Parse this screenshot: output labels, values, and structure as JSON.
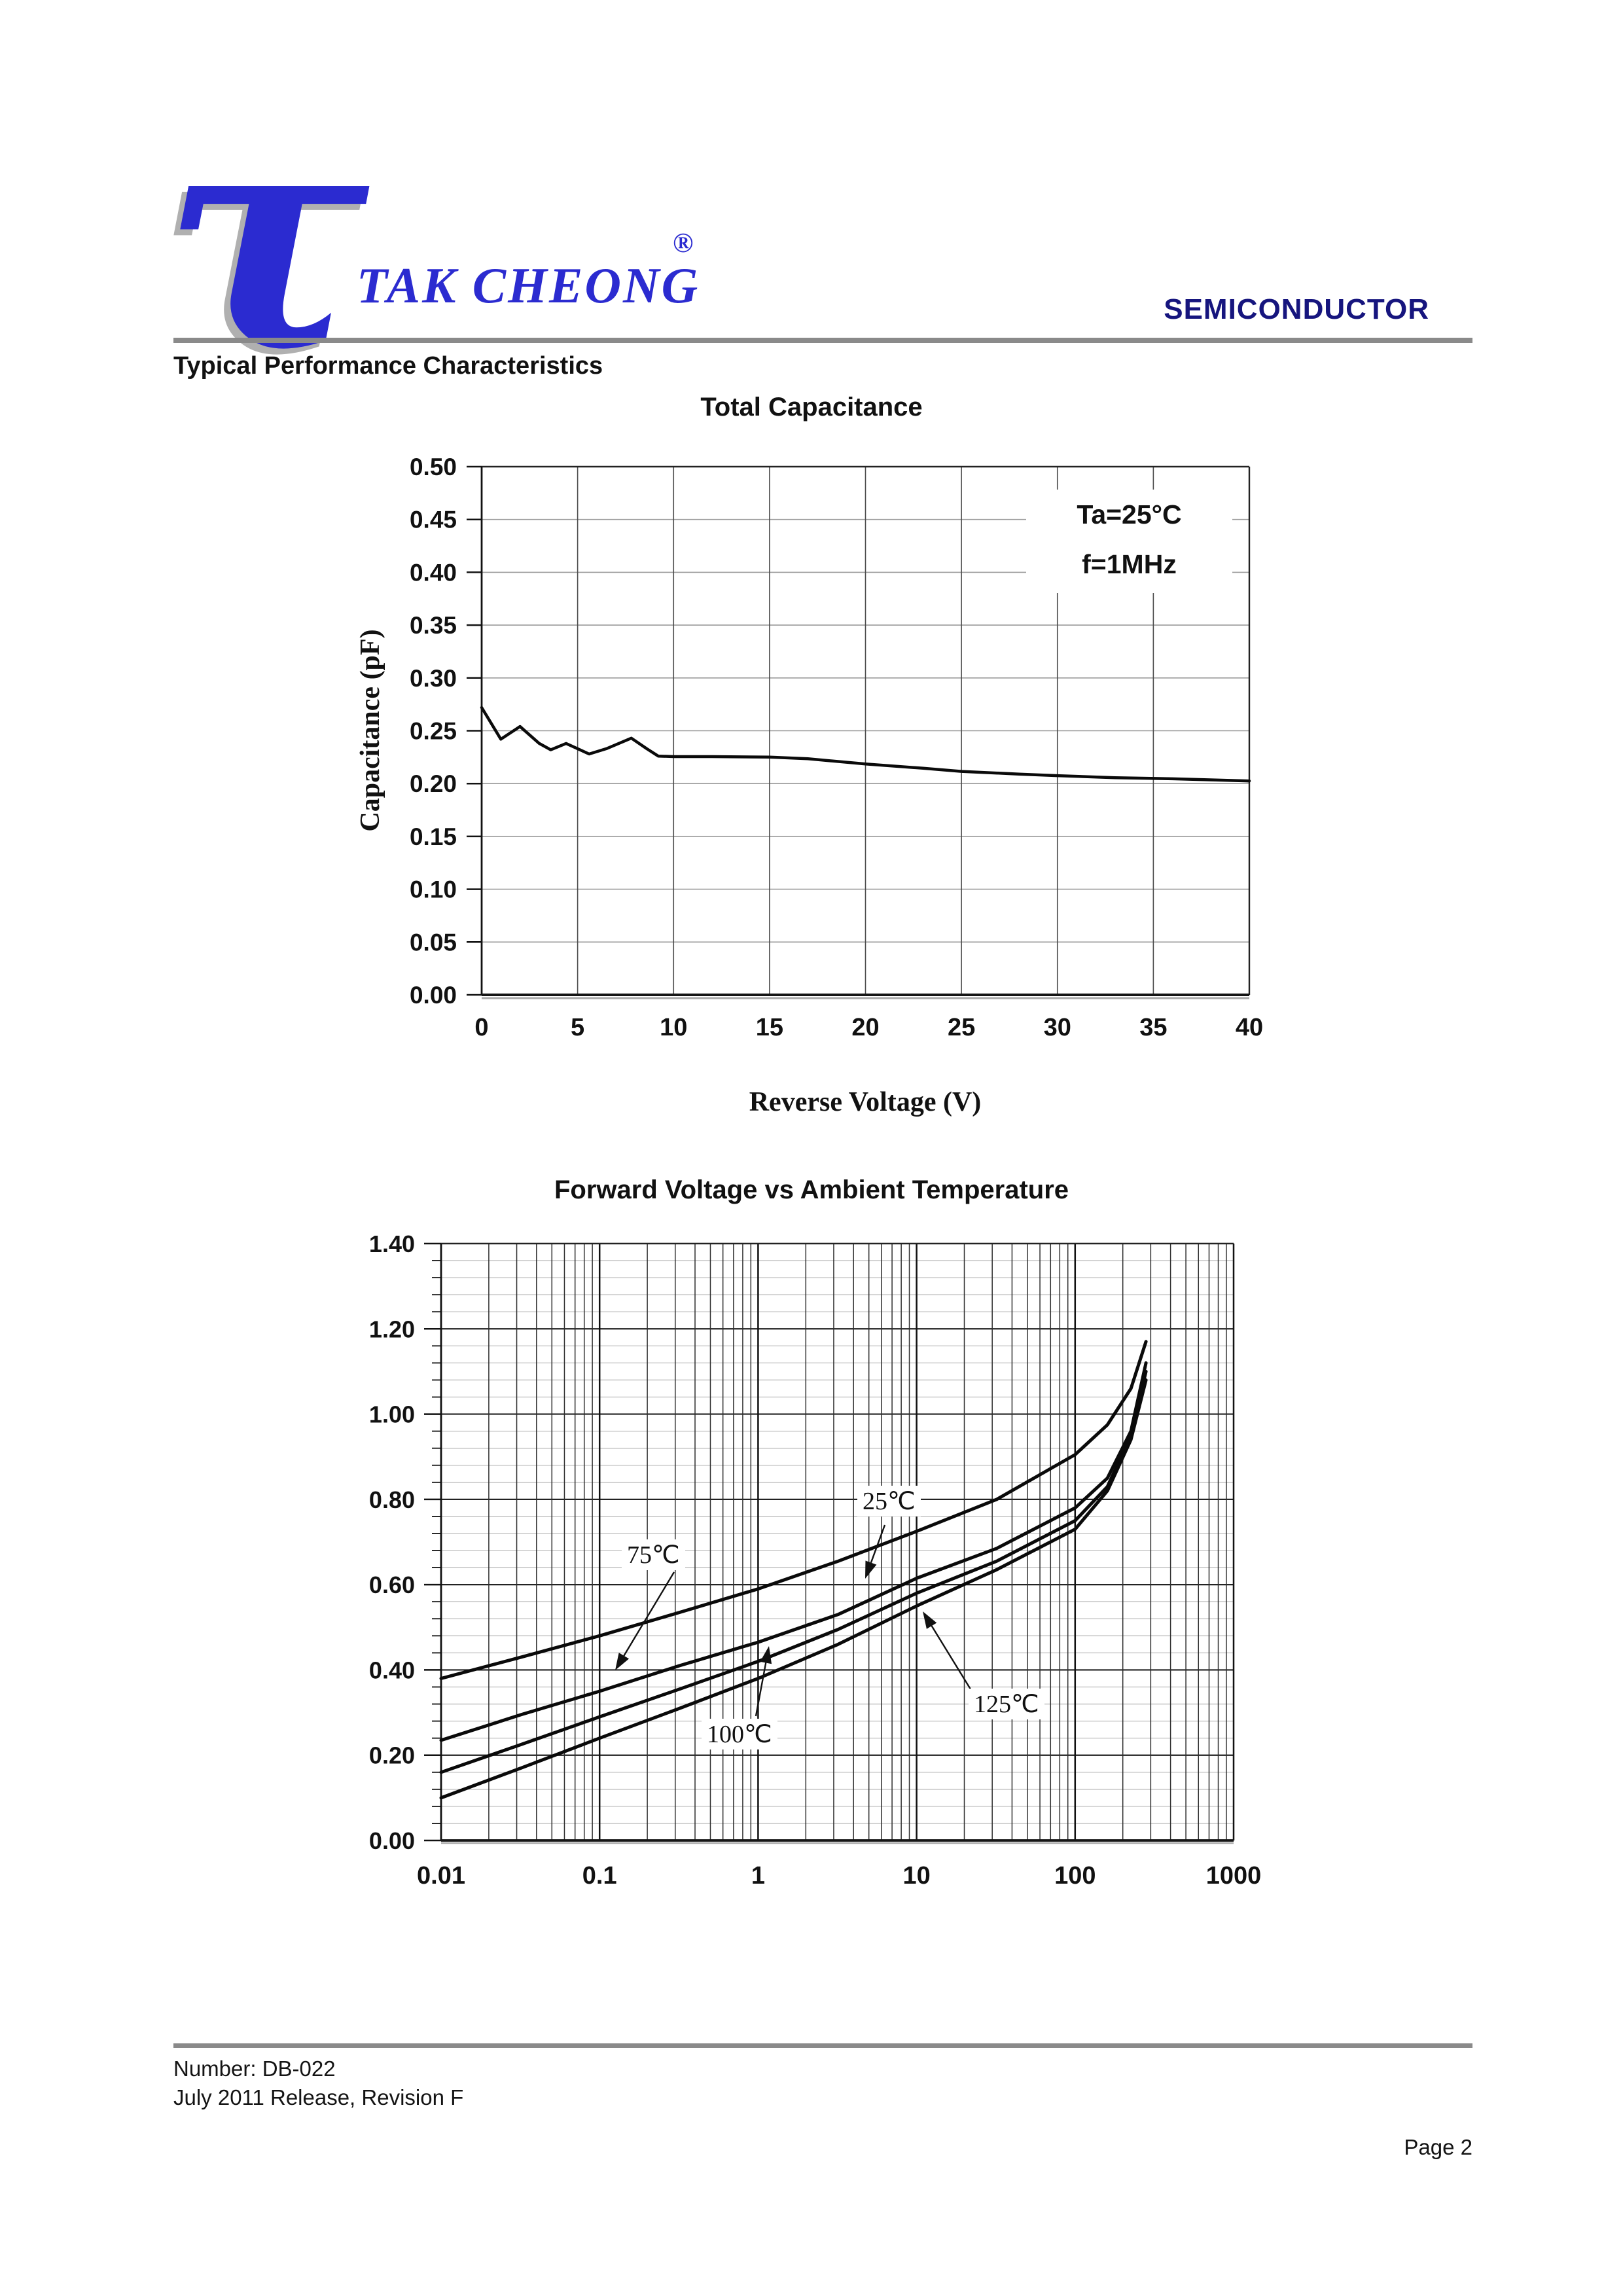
{
  "header": {
    "logo_glyph": "τ",
    "brand": "TAK CHEONG",
    "registered_mark": "®",
    "division": "SEMICONDUCTOR",
    "section_title": "Typical Performance Characteristics"
  },
  "chart_data": [
    {
      "type": "line",
      "title": "Total Capacitance",
      "xlabel": "Reverse Voltage (V)",
      "ylabel": "Capacitance (pF)",
      "x_scale": "linear",
      "xlim": [
        0,
        40
      ],
      "ylim": [
        0,
        0.5
      ],
      "grid": true,
      "legend": "none",
      "x_ticks": [
        "0",
        "5",
        "10",
        "15",
        "20",
        "25",
        "30",
        "35",
        "40"
      ],
      "y_ticks": [
        "0.50",
        "0.45",
        "0.40",
        "0.35",
        "0.30",
        "0.25",
        "0.20",
        "0.15",
        "0.10",
        "0.05",
        "0.00"
      ],
      "annotation": [
        "Ta=25°C",
        "f=1MHz"
      ],
      "series": [
        {
          "name": "total-capacitance",
          "points": [
            [
              0,
              0.272
            ],
            [
              1,
              0.242
            ],
            [
              2,
              0.254
            ],
            [
              3,
              0.238
            ],
            [
              3.6,
              0.232
            ],
            [
              4.4,
              0.238
            ],
            [
              5,
              0.233
            ],
            [
              5.6,
              0.228
            ],
            [
              6.5,
              0.233
            ],
            [
              7.8,
              0.243
            ],
            [
              8.6,
              0.233
            ],
            [
              9.2,
              0.226
            ],
            [
              10,
              0.2255
            ],
            [
              12,
              0.2255
            ],
            [
              15,
              0.225
            ],
            [
              17,
              0.2235
            ],
            [
              20,
              0.2185
            ],
            [
              23,
              0.2145
            ],
            [
              25,
              0.2115
            ],
            [
              28,
              0.209
            ],
            [
              30,
              0.2075
            ],
            [
              33,
              0.2055
            ],
            [
              36,
              0.2045
            ],
            [
              40,
              0.2025
            ]
          ]
        }
      ]
    },
    {
      "type": "line",
      "title": "Forward Voltage vs Ambient Temperature",
      "xlabel": "",
      "ylabel": "",
      "x_scale": "log",
      "xlim": [
        0.01,
        1000
      ],
      "ylim": [
        0,
        1.4
      ],
      "grid": true,
      "legend": "none",
      "x_ticks": [
        "0.01",
        "0.1",
        "1",
        "10",
        "100",
        "1000"
      ],
      "y_ticks": [
        "1.40",
        "1.20",
        "1.00",
        "0.80",
        "0.60",
        "0.40",
        "0.20",
        "0.00"
      ],
      "series": [
        {
          "label": "25℃",
          "points": [
            [
              0.01,
              0.38
            ],
            [
              0.032,
              0.43
            ],
            [
              0.1,
              0.48
            ],
            [
              0.32,
              0.535
            ],
            [
              1,
              0.59
            ],
            [
              3.2,
              0.655
            ],
            [
              10,
              0.725
            ],
            [
              32,
              0.8
            ],
            [
              100,
              0.905
            ],
            [
              160,
              0.975
            ],
            [
              225,
              1.06
            ],
            [
              280,
              1.17
            ]
          ]
        },
        {
          "label": "75℃",
          "points": [
            [
              0.01,
              0.235
            ],
            [
              0.032,
              0.295
            ],
            [
              0.1,
              0.35
            ],
            [
              0.32,
              0.41
            ],
            [
              1,
              0.465
            ],
            [
              3.2,
              0.53
            ],
            [
              10,
              0.615
            ],
            [
              32,
              0.685
            ],
            [
              100,
              0.78
            ],
            [
              160,
              0.85
            ],
            [
              225,
              0.96
            ],
            [
              280,
              1.12
            ]
          ]
        },
        {
          "label": "100℃",
          "points": [
            [
              0.01,
              0.16
            ],
            [
              0.032,
              0.225
            ],
            [
              0.1,
              0.29
            ],
            [
              0.32,
              0.355
            ],
            [
              1,
              0.42
            ],
            [
              3.2,
              0.495
            ],
            [
              10,
              0.58
            ],
            [
              32,
              0.655
            ],
            [
              100,
              0.75
            ],
            [
              160,
              0.83
            ],
            [
              225,
              0.95
            ],
            [
              280,
              1.1
            ]
          ]
        },
        {
          "label": "125℃",
          "points": [
            [
              0.01,
              0.1
            ],
            [
              0.032,
              0.17
            ],
            [
              0.1,
              0.24
            ],
            [
              0.32,
              0.31
            ],
            [
              1,
              0.38
            ],
            [
              3.2,
              0.46
            ],
            [
              10,
              0.55
            ],
            [
              32,
              0.635
            ],
            [
              100,
              0.73
            ],
            [
              160,
              0.82
            ],
            [
              225,
              0.94
            ],
            [
              280,
              1.08
            ]
          ]
        }
      ]
    }
  ],
  "footer": {
    "number": "Number: DB-022",
    "release": "July 2011 Release, Revision F",
    "page": "Page 2"
  }
}
